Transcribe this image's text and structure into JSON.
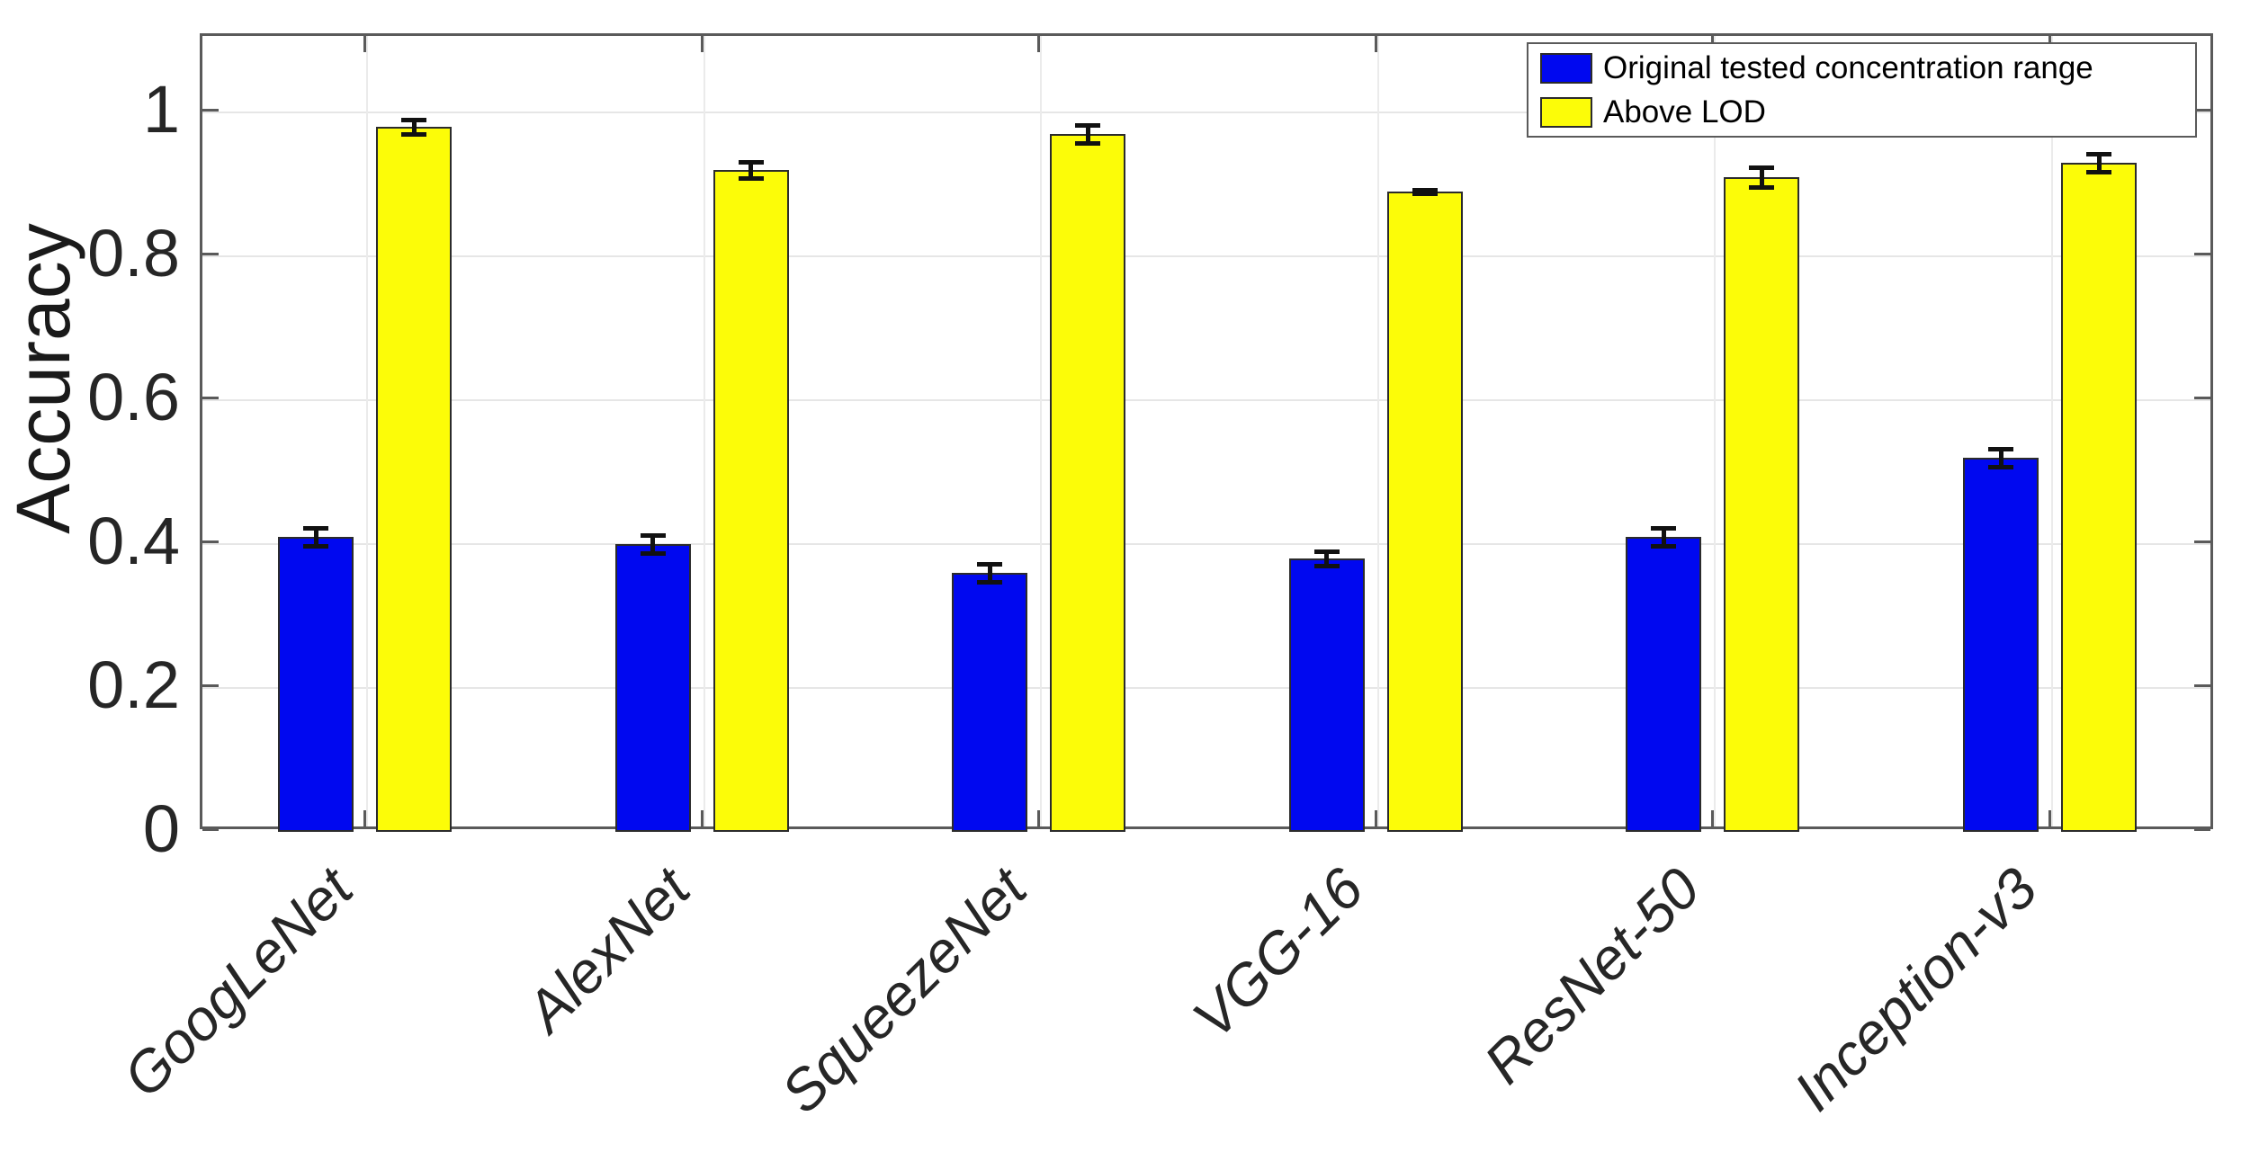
{
  "chart_data": {
    "type": "bar",
    "title": "",
    "categories": [
      "GoogLeNet",
      "AlexNet",
      "SqueezeNet",
      "VGG-16",
      "ResNet-50",
      "Inception-v3"
    ],
    "series": [
      {
        "name": "Original tested concentration range",
        "color": "#0008f0",
        "values": [
          0.41,
          0.4,
          0.36,
          0.38,
          0.41,
          0.52
        ],
        "errors": [
          0.013,
          0.012,
          0.012,
          0.01,
          0.012,
          0.012
        ]
      },
      {
        "name": "Above LOD",
        "color": "#fcfc08",
        "values": [
          0.98,
          0.92,
          0.97,
          0.89,
          0.91,
          0.93
        ],
        "errors": [
          0.01,
          0.011,
          0.012,
          0.003,
          0.014,
          0.013
        ]
      }
    ],
    "xlabel": "",
    "ylabel": "Accuracy",
    "yticks": [
      "0",
      "0.2",
      "0.4",
      "0.6",
      "0.8",
      "1"
    ],
    "ytick_values": [
      0,
      0.2,
      0.4,
      0.6,
      0.8,
      1
    ],
    "ylim": [
      0,
      1.10625
    ],
    "grid": true,
    "error_bars": true,
    "legend_position": "top-right",
    "colors": {
      "axis": "#5a5a5a",
      "grid": "#e6e6e6",
      "error_bar": "#111111",
      "tick_text": "#262626",
      "background": "#ffffff"
    }
  }
}
